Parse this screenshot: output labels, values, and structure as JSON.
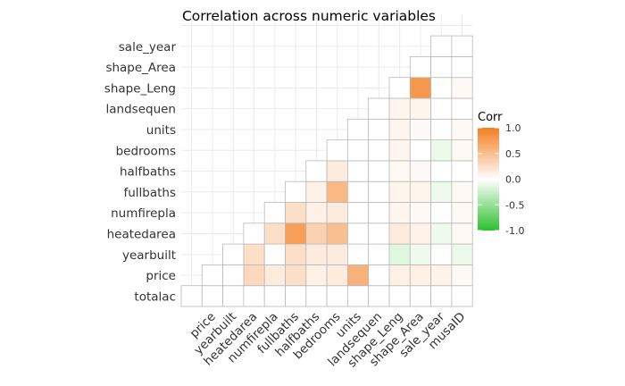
{
  "chart_data": {
    "type": "heatmap",
    "title": "Correlation across numeric variables",
    "xlabel": "",
    "ylabel": "",
    "variables": [
      "totalac",
      "price",
      "yearbuilt",
      "heatedarea",
      "numfirepla",
      "fullbaths",
      "halfbaths",
      "bedrooms",
      "units",
      "landsequen",
      "shape_Leng",
      "shape_Area",
      "sale_year",
      "musaID"
    ],
    "x_tick_labels": [
      "price",
      "yearbuilt",
      "heatedarea",
      "numfirepla",
      "fullbaths",
      "halfbaths",
      "bedrooms",
      "units",
      "landsequen",
      "shape_Leng",
      "shape_Area",
      "sale_year",
      "musaID"
    ],
    "y_tick_labels": [
      "totalac",
      "price",
      "yearbuilt",
      "heatedarea",
      "numfirepla",
      "fullbaths",
      "halfbaths",
      "bedrooms",
      "units",
      "landsequen",
      "shape_Leng",
      "shape_Area",
      "sale_year"
    ],
    "grid": true,
    "legend": {
      "title": "Corr",
      "placement": "right",
      "ticks": [
        "1.0",
        "0.5",
        "0.0",
        "-0.5",
        "-1.0"
      ],
      "tick_values": [
        1.0,
        0.5,
        0.0,
        -0.5,
        -1.0
      ]
    },
    "colors": {
      "high": "#f47e1f",
      "mid": "#ffffff",
      "low": "#2cc12c"
    },
    "cells": [
      {
        "row": "totalac",
        "col": "totalac",
        "value": 0.0
      },
      {
        "row": "totalac",
        "col": "price",
        "value": 0.0
      },
      {
        "row": "totalac",
        "col": "yearbuilt",
        "value": 0.0
      },
      {
        "row": "totalac",
        "col": "heatedarea",
        "value": 0.0
      },
      {
        "row": "totalac",
        "col": "numfirepla",
        "value": 0.0
      },
      {
        "row": "totalac",
        "col": "fullbaths",
        "value": 0.0
      },
      {
        "row": "totalac",
        "col": "halfbaths",
        "value": 0.0
      },
      {
        "row": "totalac",
        "col": "bedrooms",
        "value": 0.0
      },
      {
        "row": "totalac",
        "col": "units",
        "value": 0.0
      },
      {
        "row": "totalac",
        "col": "landsequen",
        "value": 0.0
      },
      {
        "row": "totalac",
        "col": "shape_Leng",
        "value": 0.0
      },
      {
        "row": "totalac",
        "col": "shape_Area",
        "value": 0.0
      },
      {
        "row": "totalac",
        "col": "sale_year",
        "value": 0.0
      },
      {
        "row": "totalac",
        "col": "musaID",
        "value": 0.0
      },
      {
        "row": "price",
        "col": "price",
        "value": 0.0
      },
      {
        "row": "price",
        "col": "yearbuilt",
        "value": 0.0
      },
      {
        "row": "price",
        "col": "heatedarea",
        "value": 0.3
      },
      {
        "row": "price",
        "col": "numfirepla",
        "value": 0.15
      },
      {
        "row": "price",
        "col": "fullbaths",
        "value": 0.25
      },
      {
        "row": "price",
        "col": "halfbaths",
        "value": 0.12
      },
      {
        "row": "price",
        "col": "bedrooms",
        "value": 0.15
      },
      {
        "row": "price",
        "col": "units",
        "value": 0.6
      },
      {
        "row": "price",
        "col": "landsequen",
        "value": 0.0
      },
      {
        "row": "price",
        "col": "shape_Leng",
        "value": 0.12
      },
      {
        "row": "price",
        "col": "shape_Area",
        "value": 0.12
      },
      {
        "row": "price",
        "col": "sale_year",
        "value": 0.1
      },
      {
        "row": "price",
        "col": "musaID",
        "value": 0.05
      },
      {
        "row": "yearbuilt",
        "col": "yearbuilt",
        "value": 0.0
      },
      {
        "row": "yearbuilt",
        "col": "heatedarea",
        "value": 0.25
      },
      {
        "row": "yearbuilt",
        "col": "numfirepla",
        "value": 0.0
      },
      {
        "row": "yearbuilt",
        "col": "fullbaths",
        "value": 0.25
      },
      {
        "row": "yearbuilt",
        "col": "halfbaths",
        "value": 0.15
      },
      {
        "row": "yearbuilt",
        "col": "bedrooms",
        "value": 0.15
      },
      {
        "row": "yearbuilt",
        "col": "units",
        "value": 0.0
      },
      {
        "row": "yearbuilt",
        "col": "landsequen",
        "value": 0.0
      },
      {
        "row": "yearbuilt",
        "col": "shape_Leng",
        "value": -0.15
      },
      {
        "row": "yearbuilt",
        "col": "shape_Area",
        "value": -0.08
      },
      {
        "row": "yearbuilt",
        "col": "sale_year",
        "value": 0.0
      },
      {
        "row": "yearbuilt",
        "col": "musaID",
        "value": -0.1
      },
      {
        "row": "heatedarea",
        "col": "heatedarea",
        "value": 0.0
      },
      {
        "row": "heatedarea",
        "col": "numfirepla",
        "value": 0.25
      },
      {
        "row": "heatedarea",
        "col": "fullbaths",
        "value": 0.75
      },
      {
        "row": "heatedarea",
        "col": "halfbaths",
        "value": 0.35
      },
      {
        "row": "heatedarea",
        "col": "bedrooms",
        "value": 0.5
      },
      {
        "row": "heatedarea",
        "col": "units",
        "value": 0.0
      },
      {
        "row": "heatedarea",
        "col": "landsequen",
        "value": 0.0
      },
      {
        "row": "heatedarea",
        "col": "shape_Leng",
        "value": 0.15
      },
      {
        "row": "heatedarea",
        "col": "shape_Area",
        "value": 0.1
      },
      {
        "row": "heatedarea",
        "col": "sale_year",
        "value": -0.08
      },
      {
        "row": "heatedarea",
        "col": "musaID",
        "value": 0.05
      },
      {
        "row": "numfirepla",
        "col": "numfirepla",
        "value": 0.0
      },
      {
        "row": "numfirepla",
        "col": "fullbaths",
        "value": 0.25
      },
      {
        "row": "numfirepla",
        "col": "halfbaths",
        "value": 0.12
      },
      {
        "row": "numfirepla",
        "col": "bedrooms",
        "value": 0.15
      },
      {
        "row": "numfirepla",
        "col": "units",
        "value": 0.0
      },
      {
        "row": "numfirepla",
        "col": "landsequen",
        "value": 0.0
      },
      {
        "row": "numfirepla",
        "col": "shape_Leng",
        "value": 0.08
      },
      {
        "row": "numfirepla",
        "col": "shape_Area",
        "value": 0.05
      },
      {
        "row": "numfirepla",
        "col": "sale_year",
        "value": 0.0
      },
      {
        "row": "numfirepla",
        "col": "musaID",
        "value": 0.05
      },
      {
        "row": "fullbaths",
        "col": "fullbaths",
        "value": 0.0
      },
      {
        "row": "fullbaths",
        "col": "halfbaths",
        "value": 0.1
      },
      {
        "row": "fullbaths",
        "col": "bedrooms",
        "value": 0.55
      },
      {
        "row": "fullbaths",
        "col": "units",
        "value": 0.0
      },
      {
        "row": "fullbaths",
        "col": "landsequen",
        "value": 0.0
      },
      {
        "row": "fullbaths",
        "col": "shape_Leng",
        "value": 0.08
      },
      {
        "row": "fullbaths",
        "col": "shape_Area",
        "value": 0.08
      },
      {
        "row": "fullbaths",
        "col": "sale_year",
        "value": -0.08
      },
      {
        "row": "fullbaths",
        "col": "musaID",
        "value": 0.05
      },
      {
        "row": "halfbaths",
        "col": "halfbaths",
        "value": 0.0
      },
      {
        "row": "halfbaths",
        "col": "bedrooms",
        "value": 0.15
      },
      {
        "row": "halfbaths",
        "col": "units",
        "value": 0.0
      },
      {
        "row": "halfbaths",
        "col": "landsequen",
        "value": 0.0
      },
      {
        "row": "halfbaths",
        "col": "shape_Leng",
        "value": 0.05
      },
      {
        "row": "halfbaths",
        "col": "shape_Area",
        "value": 0.05
      },
      {
        "row": "halfbaths",
        "col": "sale_year",
        "value": 0.0
      },
      {
        "row": "halfbaths",
        "col": "musaID",
        "value": 0.0
      },
      {
        "row": "bedrooms",
        "col": "bedrooms",
        "value": 0.0
      },
      {
        "row": "bedrooms",
        "col": "units",
        "value": 0.0
      },
      {
        "row": "bedrooms",
        "col": "landsequen",
        "value": 0.0
      },
      {
        "row": "bedrooms",
        "col": "shape_Leng",
        "value": 0.08
      },
      {
        "row": "bedrooms",
        "col": "shape_Area",
        "value": 0.0
      },
      {
        "row": "bedrooms",
        "col": "sale_year",
        "value": -0.1
      },
      {
        "row": "bedrooms",
        "col": "musaID",
        "value": 0.05
      },
      {
        "row": "units",
        "col": "units",
        "value": 0.0
      },
      {
        "row": "units",
        "col": "landsequen",
        "value": 0.0
      },
      {
        "row": "units",
        "col": "shape_Leng",
        "value": 0.08
      },
      {
        "row": "units",
        "col": "shape_Area",
        "value": 0.05
      },
      {
        "row": "units",
        "col": "sale_year",
        "value": 0.0
      },
      {
        "row": "units",
        "col": "musaID",
        "value": 0.05
      },
      {
        "row": "landsequen",
        "col": "landsequen",
        "value": 0.0
      },
      {
        "row": "landsequen",
        "col": "shape_Leng",
        "value": 0.08
      },
      {
        "row": "landsequen",
        "col": "shape_Area",
        "value": 0.08
      },
      {
        "row": "landsequen",
        "col": "sale_year",
        "value": 0.0
      },
      {
        "row": "landsequen",
        "col": "musaID",
        "value": 0.0
      },
      {
        "row": "shape_Leng",
        "col": "shape_Leng",
        "value": 0.0
      },
      {
        "row": "shape_Leng",
        "col": "shape_Area",
        "value": 0.8
      },
      {
        "row": "shape_Leng",
        "col": "sale_year",
        "value": 0.0
      },
      {
        "row": "shape_Leng",
        "col": "musaID",
        "value": 0.05
      },
      {
        "row": "shape_Area",
        "col": "shape_Area",
        "value": 0.0
      },
      {
        "row": "shape_Area",
        "col": "sale_year",
        "value": 0.0
      },
      {
        "row": "shape_Area",
        "col": "musaID",
        "value": 0.0
      },
      {
        "row": "sale_year",
        "col": "sale_year",
        "value": 0.0
      },
      {
        "row": "sale_year",
        "col": "musaID",
        "value": 0.0
      }
    ]
  }
}
